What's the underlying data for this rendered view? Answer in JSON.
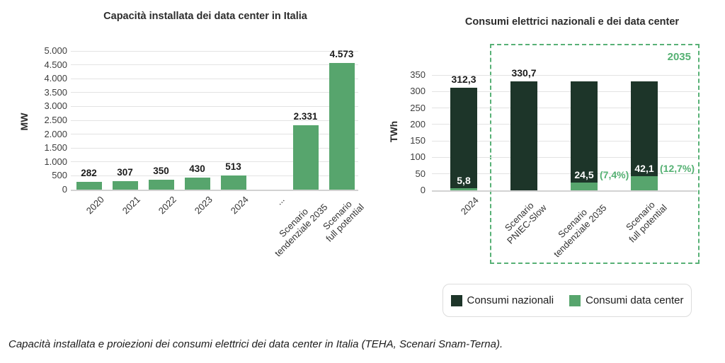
{
  "caption": "Capacità installata e proiezioni dei consumi elettrici dei data center in Italia (TEHA, Scenari Snam-Terna).",
  "colors": {
    "bar_green": "#57a56d",
    "dark_green": "#1d3529",
    "accent_green": "#55b173",
    "gridline": "#e3e3e3"
  },
  "chart_data": [
    {
      "type": "bar",
      "title": "Capacità installata dei data center in Italia",
      "ylabel": "MW",
      "ylim": [
        0,
        5000
      ],
      "ytick_step": 500,
      "ytick_labels": [
        "0",
        "500",
        "1.000",
        "1.500",
        "2.000",
        "2.500",
        "3.000",
        "3.500",
        "4.000",
        "4.500",
        "5.000"
      ],
      "grid": true,
      "legend_position": "none",
      "categories": [
        "2020",
        "2021",
        "2022",
        "2023",
        "2024",
        "...",
        "Scenario\ntendenziale 2035",
        "Scenario\nfull potential"
      ],
      "values": [
        282,
        307,
        350,
        430,
        513,
        null,
        2331,
        4573
      ],
      "value_labels": [
        "282",
        "307",
        "350",
        "430",
        "513",
        "",
        "2.331",
        "4.573"
      ],
      "bar_color": "#57a56d"
    },
    {
      "type": "stacked-bar",
      "title": "Consumi elettrici nazionali e dei data center",
      "ylabel": "TWh",
      "ylim": [
        0,
        350
      ],
      "ytick_step": 50,
      "ytick_labels": [
        "0",
        "50",
        "100",
        "150",
        "200",
        "250",
        "300",
        "350"
      ],
      "grid": true,
      "legend_position": "bottom",
      "categories": [
        "2024",
        "Scenario\nPNIEC-Slow",
        "Scenario\ntendenziale 2035",
        "Scenario\nfull potential"
      ],
      "series": [
        {
          "name": "Consumi nazionali",
          "color": "#1d3529"
        },
        {
          "name": "Consumi data center",
          "color": "#57a56d"
        }
      ],
      "bars": [
        {
          "total": 312.3,
          "total_label": "312,3",
          "datacenter": 5.8,
          "dc_label": "5,8",
          "pct_label": ""
        },
        {
          "total": 330.7,
          "total_label": "330,7",
          "datacenter": 0,
          "dc_label": "",
          "pct_label": ""
        },
        {
          "total": 330.7,
          "total_label": "",
          "datacenter": 24.5,
          "dc_label": "24,5",
          "pct_label": "(7,4%)"
        },
        {
          "total": 330.7,
          "total_label": "",
          "datacenter": 42.1,
          "dc_label": "42,1",
          "pct_label": "(12,7%)"
        }
      ],
      "annotation_label": "2035",
      "legend": [
        {
          "label": "Consumi nazionali",
          "color": "#1d3529"
        },
        {
          "label": "Consumi data center",
          "color": "#57a56d"
        }
      ]
    }
  ]
}
